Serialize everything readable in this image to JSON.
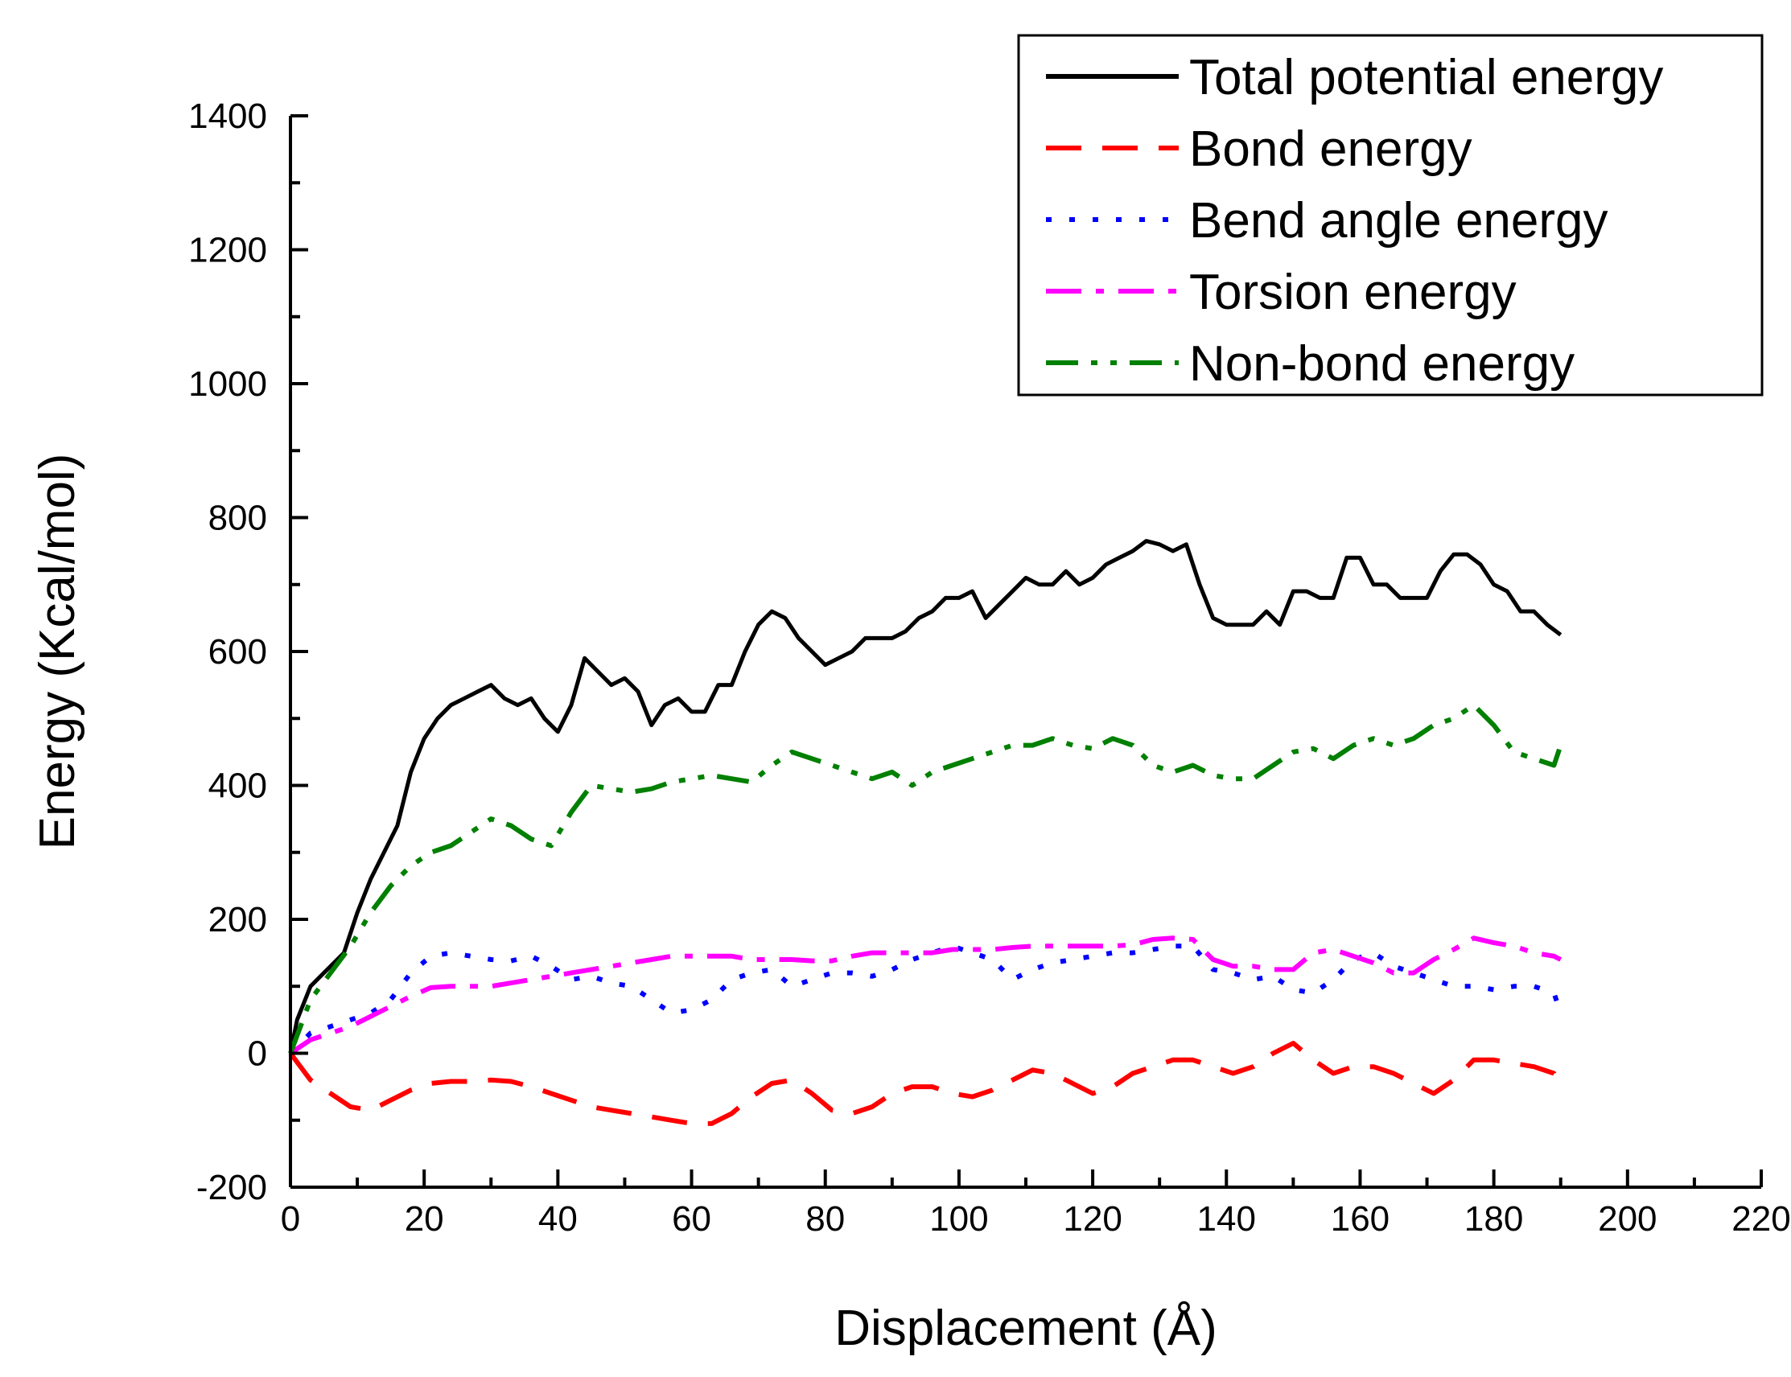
{
  "chart_data": {
    "type": "line",
    "title": "",
    "xlabel": "Displacement (Å)",
    "ylabel": "Energy (Kcal/mol)",
    "xlim": [
      0,
      220
    ],
    "ylim": [
      -200,
      1400
    ],
    "xticks": [
      0,
      20,
      40,
      60,
      80,
      100,
      120,
      140,
      160,
      180,
      200,
      220
    ],
    "yticks": [
      -200,
      0,
      200,
      400,
      600,
      800,
      1000,
      1200,
      1400
    ],
    "legend_position": "top-right",
    "series": [
      {
        "name": "Total potential energy",
        "color": "#000000",
        "style": "solid",
        "x": [
          0,
          1,
          3,
          5,
          8,
          10,
          12,
          14,
          16,
          18,
          20,
          22,
          24,
          26,
          28,
          30,
          32,
          34,
          36,
          38,
          40,
          42,
          44,
          46,
          48,
          50,
          52,
          54,
          56,
          58,
          60,
          62,
          64,
          66,
          68,
          70,
          72,
          74,
          76,
          78,
          80,
          82,
          84,
          86,
          88,
          90,
          92,
          94,
          96,
          98,
          100,
          102,
          104,
          106,
          108,
          110,
          112,
          114,
          116,
          118,
          120,
          122,
          124,
          126,
          128,
          130,
          132,
          134,
          136,
          138,
          140,
          142,
          144,
          146,
          148,
          150,
          152,
          154,
          156,
          158,
          160,
          162,
          164,
          166,
          168,
          170,
          172,
          174,
          176,
          178,
          180,
          182,
          184,
          186,
          188,
          190
        ],
        "values": [
          0,
          50,
          100,
          120,
          150,
          210,
          260,
          300,
          340,
          420,
          470,
          500,
          520,
          530,
          540,
          550,
          530,
          520,
          530,
          500,
          480,
          520,
          590,
          570,
          550,
          560,
          540,
          490,
          520,
          530,
          510,
          510,
          550,
          550,
          600,
          640,
          660,
          650,
          620,
          600,
          580,
          590,
          600,
          620,
          620,
          620,
          630,
          650,
          660,
          680,
          680,
          690,
          650,
          670,
          690,
          710,
          700,
          700,
          720,
          700,
          710,
          730,
          740,
          750,
          765,
          760,
          750,
          760,
          700,
          650,
          640,
          640,
          640,
          660,
          640,
          690,
          690,
          680,
          680,
          740,
          740,
          700,
          700,
          680,
          680,
          680,
          720,
          745,
          745,
          730,
          700,
          690,
          660,
          660,
          640,
          625
        ]
      },
      {
        "name": "Bond energy",
        "color": "#ff0000",
        "style": "dashed",
        "x": [
          0,
          3,
          6,
          9,
          12,
          15,
          18,
          21,
          24,
          27,
          30,
          33,
          36,
          39,
          42,
          45,
          48,
          51,
          54,
          57,
          60,
          63,
          66,
          69,
          72,
          75,
          78,
          81,
          84,
          87,
          90,
          93,
          96,
          99,
          102,
          105,
          108,
          111,
          114,
          117,
          120,
          123,
          126,
          129,
          132,
          135,
          138,
          141,
          144,
          147,
          150,
          153,
          156,
          159,
          162,
          165,
          168,
          171,
          174,
          177,
          180,
          183,
          186,
          189,
          190
        ],
        "values": [
          0,
          -40,
          -60,
          -80,
          -85,
          -70,
          -55,
          -45,
          -42,
          -42,
          -40,
          -42,
          -50,
          -60,
          -70,
          -80,
          -85,
          -90,
          -95,
          -100,
          -105,
          -105,
          -90,
          -65,
          -45,
          -40,
          -60,
          -85,
          -90,
          -80,
          -60,
          -50,
          -50,
          -60,
          -65,
          -55,
          -40,
          -25,
          -30,
          -45,
          -60,
          -50,
          -30,
          -20,
          -10,
          -10,
          -20,
          -30,
          -20,
          0,
          15,
          -10,
          -30,
          -20,
          -20,
          -30,
          -45,
          -60,
          -40,
          -10,
          -10,
          -15,
          -20,
          -30,
          -50
        ]
      },
      {
        "name": "Bend angle energy",
        "color": "#0000ff",
        "style": "dotted",
        "x": [
          0,
          3,
          6,
          9,
          12,
          15,
          18,
          21,
          24,
          27,
          30,
          33,
          36,
          39,
          42,
          45,
          48,
          51,
          54,
          57,
          60,
          63,
          66,
          69,
          72,
          75,
          78,
          81,
          84,
          87,
          90,
          93,
          96,
          99,
          102,
          105,
          108,
          111,
          114,
          117,
          120,
          123,
          126,
          129,
          132,
          135,
          138,
          141,
          144,
          147,
          150,
          153,
          156,
          159,
          162,
          165,
          168,
          171,
          174,
          177,
          180,
          183,
          186,
          189,
          190
        ],
        "values": [
          0,
          30,
          40,
          50,
          60,
          80,
          120,
          145,
          150,
          145,
          140,
          138,
          145,
          130,
          110,
          115,
          105,
          100,
          80,
          60,
          65,
          80,
          110,
          120,
          125,
          100,
          110,
          120,
          120,
          115,
          125,
          140,
          150,
          160,
          150,
          140,
          110,
          125,
          135,
          140,
          145,
          150,
          150,
          155,
          160,
          160,
          125,
          120,
          110,
          115,
          95,
          90,
          110,
          140,
          150,
          130,
          120,
          110,
          100,
          100,
          95,
          100,
          100,
          90,
          60
        ]
      },
      {
        "name": "Torsion energy",
        "color": "#ff00ff",
        "style": "dashdot",
        "x": [
          0,
          3,
          6,
          9,
          12,
          15,
          18,
          21,
          24,
          27,
          30,
          33,
          36,
          39,
          42,
          45,
          48,
          51,
          54,
          57,
          60,
          63,
          66,
          69,
          72,
          75,
          78,
          81,
          84,
          87,
          90,
          93,
          96,
          99,
          102,
          105,
          108,
          111,
          114,
          117,
          120,
          123,
          126,
          129,
          132,
          135,
          138,
          141,
          144,
          147,
          150,
          153,
          156,
          159,
          162,
          165,
          168,
          171,
          174,
          177,
          180,
          183,
          186,
          189,
          190
        ],
        "values": [
          0,
          20,
          30,
          40,
          55,
          70,
          85,
          98,
          100,
          100,
          100,
          105,
          110,
          115,
          120,
          125,
          130,
          135,
          140,
          145,
          145,
          145,
          145,
          140,
          140,
          140,
          138,
          138,
          145,
          150,
          150,
          150,
          150,
          155,
          155,
          155,
          158,
          160,
          160,
          160,
          160,
          160,
          162,
          170,
          172,
          170,
          140,
          130,
          130,
          125,
          125,
          150,
          155,
          145,
          135,
          120,
          120,
          140,
          155,
          172,
          165,
          160,
          150,
          145,
          140
        ]
      },
      {
        "name": "Non-bond energy",
        "color": "#008000",
        "style": "dashdotdot",
        "x": [
          0,
          3,
          6,
          9,
          12,
          15,
          18,
          21,
          24,
          27,
          30,
          33,
          36,
          39,
          42,
          45,
          48,
          51,
          54,
          57,
          60,
          63,
          66,
          69,
          72,
          75,
          78,
          81,
          84,
          87,
          90,
          93,
          96,
          99,
          102,
          105,
          108,
          111,
          114,
          117,
          120,
          123,
          126,
          129,
          132,
          135,
          138,
          141,
          144,
          147,
          150,
          153,
          156,
          159,
          162,
          165,
          168,
          171,
          174,
          177,
          180,
          183,
          186,
          189,
          190
        ],
        "values": [
          0,
          80,
          120,
          160,
          210,
          250,
          280,
          300,
          310,
          330,
          350,
          340,
          320,
          310,
          360,
          400,
          395,
          390,
          395,
          405,
          410,
          415,
          410,
          405,
          430,
          450,
          440,
          430,
          420,
          410,
          420,
          400,
          420,
          430,
          440,
          450,
          460,
          460,
          470,
          460,
          455,
          470,
          460,
          430,
          420,
          430,
          415,
          410,
          410,
          430,
          450,
          455,
          440,
          460,
          470,
          460,
          470,
          490,
          500,
          520,
          490,
          450,
          440,
          430,
          460
        ]
      }
    ]
  }
}
